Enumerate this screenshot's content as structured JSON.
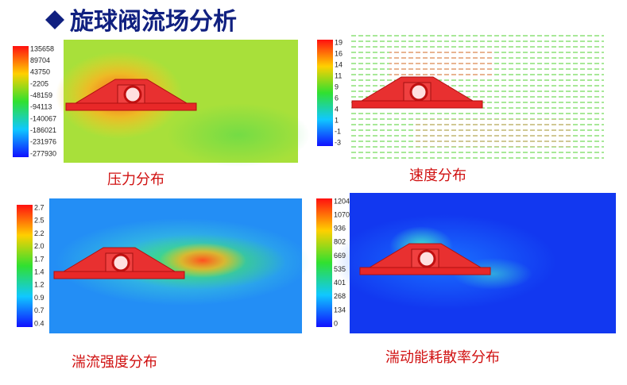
{
  "header": {
    "title": "旋球阀流场分析"
  },
  "panels": [
    {
      "caption": "压力分布",
      "scale": [
        "135658",
        "89704",
        "43750",
        "-2205",
        "-48159",
        "-94113",
        "-140067",
        "-186021",
        "-231976",
        "-277930"
      ]
    },
    {
      "caption": "速度分布",
      "scale": [
        "19",
        "16",
        "14",
        "11",
        "9",
        "6",
        "4",
        "1",
        "-1",
        "-3"
      ]
    },
    {
      "caption": "湍流强度分布",
      "scale": [
        "2.7",
        "2.5",
        "2.2",
        "2.0",
        "1.7",
        "1.4",
        "1.2",
        "0.9",
        "0.7",
        "0.4"
      ]
    },
    {
      "caption": "湍动能耗散率分布",
      "scale": [
        "1204",
        "1070",
        "936",
        "802",
        "669",
        "535",
        "401",
        "268",
        "134",
        "0"
      ]
    }
  ]
}
